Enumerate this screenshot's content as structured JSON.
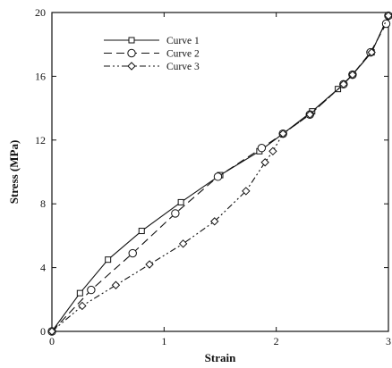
{
  "chart_data": {
    "type": "line",
    "xlabel": "Strain",
    "ylabel": "Stress (MPa)",
    "xlim": [
      0,
      3
    ],
    "ylim": [
      0,
      20
    ],
    "xticks": [
      0,
      1,
      2,
      3
    ],
    "yticks": [
      0,
      4,
      8,
      12,
      16,
      20
    ],
    "grid": false,
    "legend_position": "top-left",
    "series": [
      {
        "name": "Curve 1",
        "marker": "square",
        "dash": "solid",
        "x": [
          0,
          0.25,
          0.5,
          0.8,
          1.15,
          1.5,
          1.85,
          2.06,
          2.32,
          2.55,
          2.68,
          2.85,
          3.0
        ],
        "y": [
          0,
          2.4,
          4.5,
          6.3,
          8.1,
          9.8,
          11.3,
          12.4,
          13.8,
          15.2,
          16.1,
          17.5,
          19.8
        ]
      },
      {
        "name": "Curve 2",
        "marker": "circle",
        "dash": "longdash",
        "x": [
          0,
          0.35,
          0.72,
          1.1,
          1.48,
          1.87,
          2.06,
          2.3,
          2.6,
          2.68,
          2.84,
          2.98,
          3.0
        ],
        "y": [
          0,
          2.6,
          4.9,
          7.4,
          9.7,
          11.5,
          12.4,
          13.6,
          15.5,
          16.1,
          17.5,
          19.3,
          19.8
        ]
      },
      {
        "name": "Curve 3",
        "marker": "diamond",
        "dash": "dashdotdot",
        "x": [
          0,
          0.27,
          0.57,
          0.87,
          1.17,
          1.45,
          1.73,
          1.9,
          1.97,
          2.06,
          2.3,
          2.6,
          2.68,
          2.85,
          3.0
        ],
        "y": [
          0,
          1.6,
          2.9,
          4.2,
          5.5,
          6.9,
          8.8,
          10.6,
          11.3,
          12.4,
          13.6,
          15.5,
          16.1,
          17.5,
          19.8
        ]
      }
    ]
  }
}
